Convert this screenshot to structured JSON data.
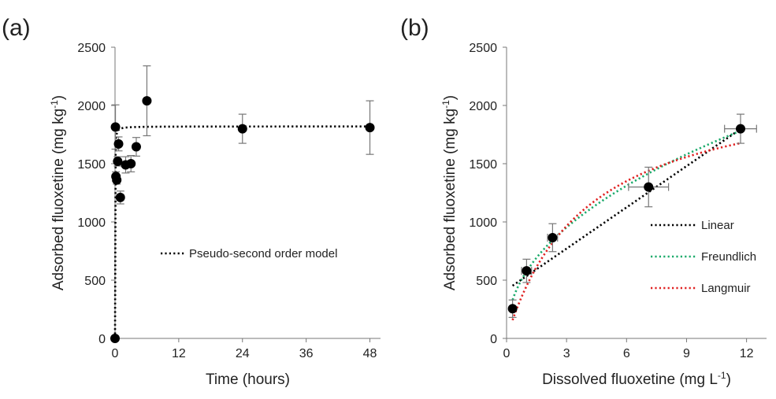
{
  "chart_data": [
    {
      "panel_label": "(a)",
      "type": "scatter",
      "xlabel": "Time (hours)",
      "ylabel": "Adsorbed fluoxetine (mg kg",
      "ylabel_sup": "-1",
      "ylabel_suffix": ")",
      "xlim": [
        0,
        50
      ],
      "ylim": [
        0,
        2500
      ],
      "xticks": [
        0,
        12,
        24,
        36,
        48
      ],
      "yticks": [
        0,
        500,
        1000,
        1500,
        2000,
        2500
      ],
      "grid": false,
      "legend_position": "right-middle",
      "points": {
        "x": [
          0,
          0.08,
          0.17,
          0.33,
          0.5,
          0.67,
          1,
          2,
          3,
          4,
          6,
          24,
          48
        ],
        "y": [
          0,
          1815,
          1390,
          1360,
          1520,
          1670,
          1210,
          1490,
          1500,
          1645,
          2040,
          1800,
          1810
        ],
        "y_err": [
          0,
          190,
          40,
          35,
          40,
          60,
          55,
          70,
          70,
          80,
          300,
          125,
          230
        ]
      },
      "series": [
        {
          "name": "Pseudo-second order model",
          "style": "dotted",
          "color": "#000000",
          "model": "pseudo-second-order",
          "qe": 1820,
          "k": 0.05
        }
      ]
    },
    {
      "panel_label": "(b)",
      "type": "scatter",
      "xlabel": "Dissolved fluoxetine (mg L",
      "xlabel_sup": "-1",
      "xlabel_suffix": ")",
      "ylabel": "Adsorbed fluoxetine (mg kg",
      "ylabel_sup": "-1",
      "ylabel_suffix": ")",
      "xlim": [
        0,
        13
      ],
      "ylim": [
        0,
        2500
      ],
      "xticks": [
        0,
        3,
        6,
        9,
        12
      ],
      "yticks": [
        0,
        500,
        1000,
        1500,
        2000,
        2500
      ],
      "grid": false,
      "legend_position": "right-middle",
      "points": {
        "x": [
          0.3,
          1.0,
          2.3,
          7.1,
          11.7
        ],
        "y": [
          255,
          580,
          865,
          1300,
          1800
        ],
        "y_err": [
          75,
          100,
          120,
          170,
          125
        ],
        "x_err": [
          0,
          0.25,
          0.25,
          1.0,
          0.8
        ]
      },
      "series": [
        {
          "name": "Linear",
          "style": "dotted",
          "color": "#000000",
          "model": "linear",
          "a": 417,
          "b": 118
        },
        {
          "name": "Freundlich",
          "style": "dotted",
          "color": "#1aaa6a",
          "model": "freundlich",
          "Kf": 575,
          "n": 0.46
        },
        {
          "name": "Langmuir",
          "style": "dotted",
          "color": "#e02020",
          "model": "langmuir",
          "qmax": 2250,
          "KL": 0.25
        }
      ]
    }
  ]
}
